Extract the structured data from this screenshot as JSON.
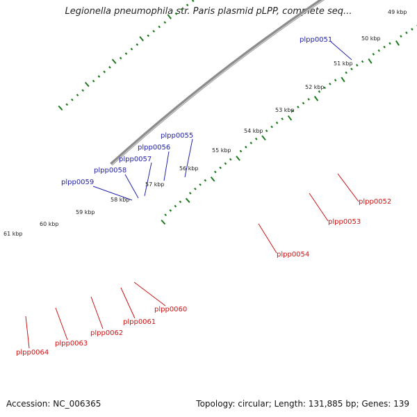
{
  "title": "Legionella pneumophila str. Paris plasmid pLPP, complete seq...",
  "footer": {
    "accession": "Accession: NC_006365",
    "topology": "Topology: circular; Length: 131,885 bp; Genes: 139"
  },
  "colors": {
    "backbone": "#8c8c8c",
    "ticks": "#1c7a1c",
    "forward_label": "#2222aa",
    "reverse_label": "#cc1111",
    "red_gene": "#ee1111",
    "blue_gene": "#1111dd",
    "pink_gene": "#ee3399",
    "grey_gene": "#666666",
    "green_gene": "#22ddaa",
    "olive_gene": "#b8b070"
  },
  "tick_labels": [
    "49 kbp",
    "50 kbp",
    "51 kbp",
    "52 kbp",
    "53 kbp",
    "54 kbp",
    "55 kbp",
    "56 kbp",
    "57 kbp",
    "58 kbp",
    "59 kbp",
    "60 kbp",
    "61 kbp"
  ],
  "forward_loci": [
    "plpp0051",
    "plpp0055",
    "plpp0056",
    "plpp0057",
    "plpp0058",
    "plpp0059"
  ],
  "reverse_loci": [
    "plpp0052",
    "plpp0053",
    "plpp0054",
    "plpp0060",
    "plpp0061",
    "plpp0062",
    "plpp0063",
    "plpp0064"
  ]
}
